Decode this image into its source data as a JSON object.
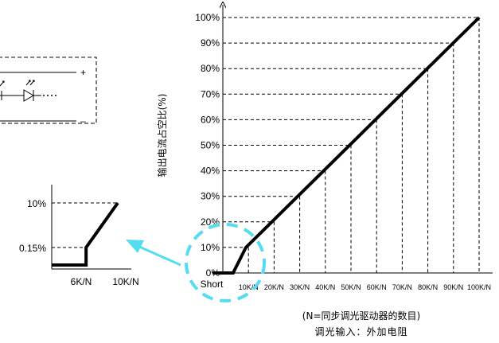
{
  "chart_data": {
    "type": "line",
    "ylabel": "输出电流占空比(%)",
    "xlabel_line1": "(N=同步调光驱动器的数目)",
    "xlabel_line2": "调光输入：外加电阻",
    "x_categories": [
      "Short",
      "10K/N",
      "20K/N",
      "30K/N",
      "40K/N",
      "50K/N",
      "60K/N",
      "70K/N",
      "80K/N",
      "90K/N",
      "100K/N"
    ],
    "y_ticks": [
      "0%",
      "10%",
      "20%",
      "30%",
      "40%",
      "50%",
      "60%",
      "70%",
      "80%",
      "90%",
      "100%"
    ],
    "ylim": [
      0,
      100
    ],
    "grid": "dashed drop lines",
    "series": [
      {
        "points": [
          [
            -0.4,
            0
          ],
          [
            0.4,
            0
          ],
          [
            0.9,
            10
          ],
          [
            10,
            100
          ]
        ]
      }
    ]
  },
  "inset": {
    "x_ticks": [
      "6K/N",
      "10K/N"
    ],
    "y_ticks": [
      "10%",
      "0.15%"
    ],
    "series": [
      {
        "points": [
          [
            0,
            0
          ],
          [
            0.52,
            0
          ],
          [
            0.52,
            0.15
          ],
          [
            1,
            10
          ]
        ]
      }
    ]
  },
  "schematic": {
    "plus_label": "+",
    "minus_label": "–"
  },
  "colors": {
    "line": "#000000",
    "grid": "#000000",
    "highlight": "#55dcf0"
  }
}
